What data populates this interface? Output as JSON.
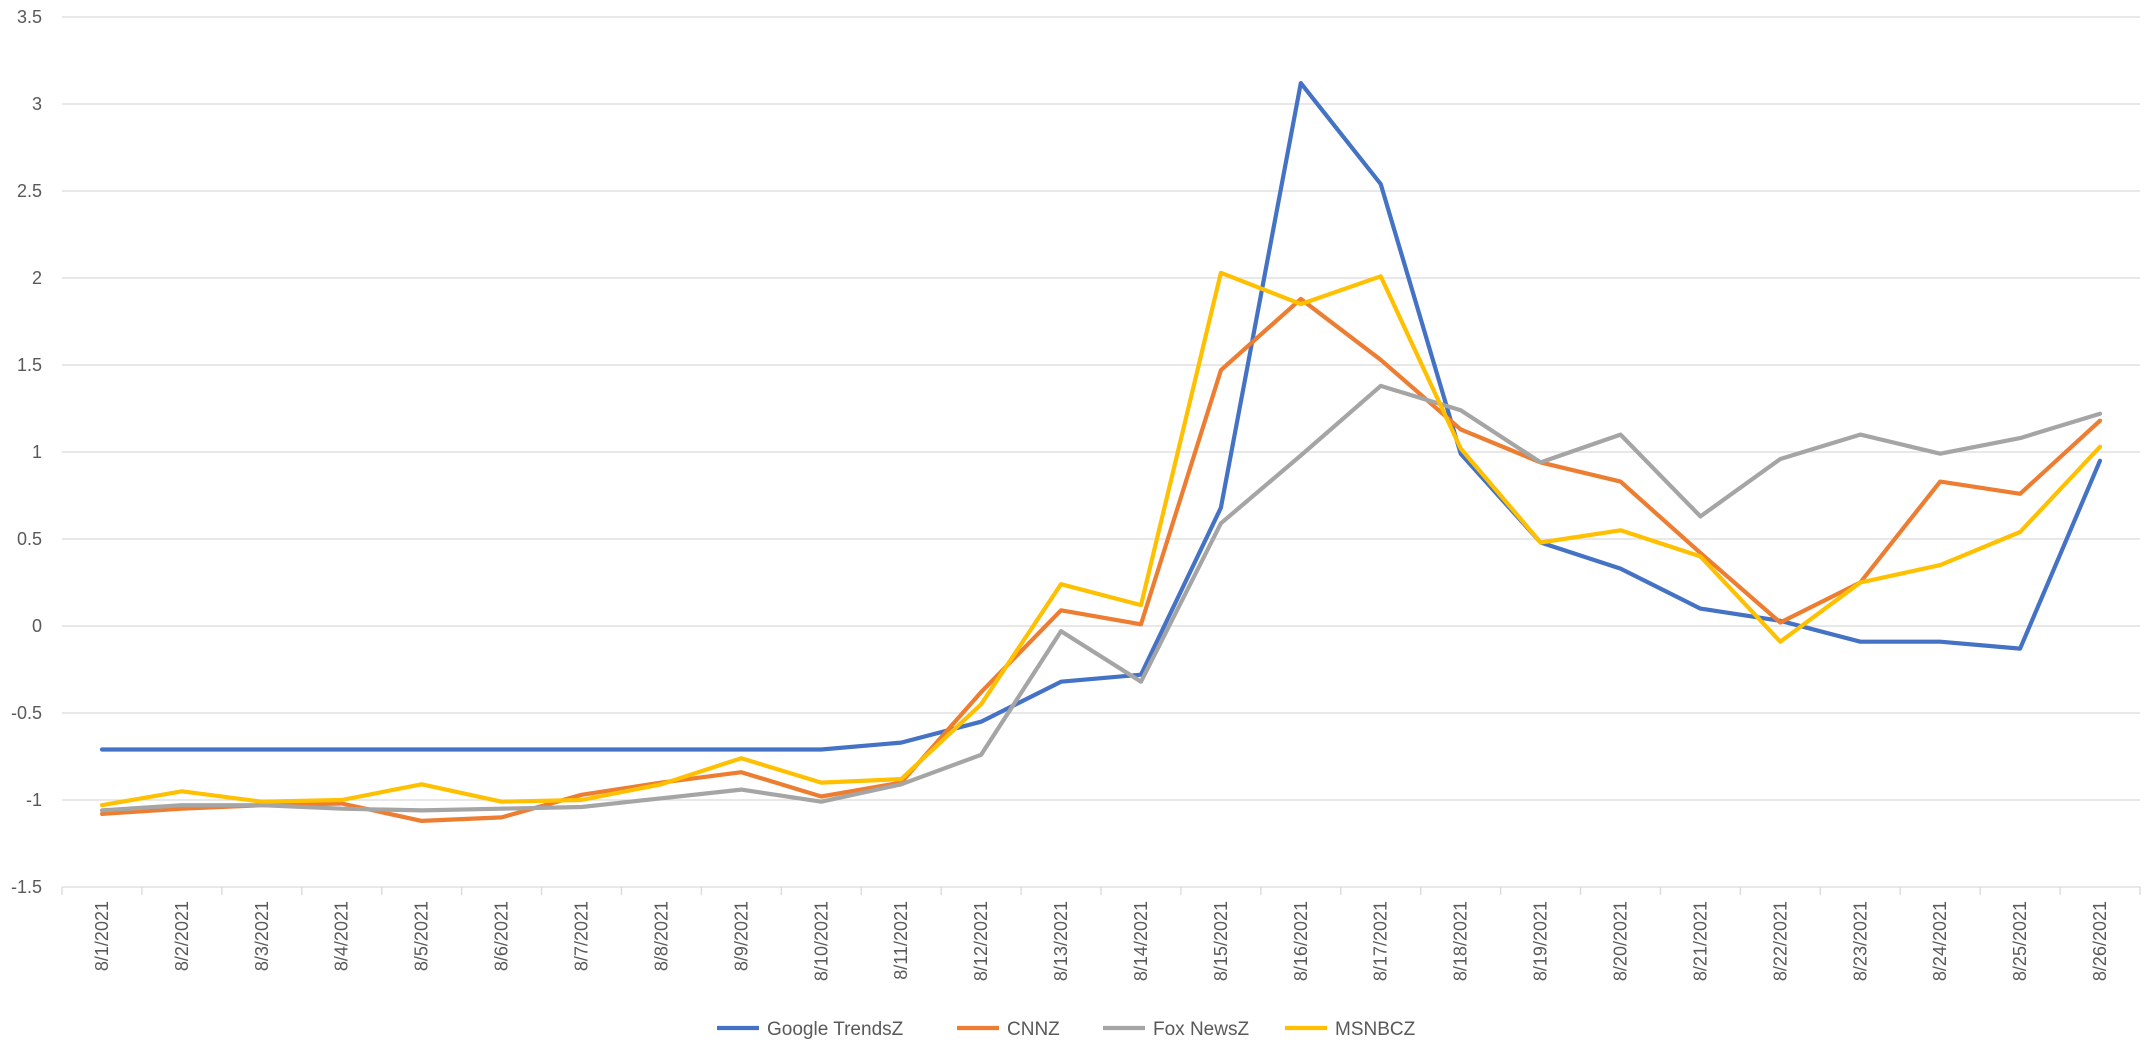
{
  "chart_data": {
    "type": "line",
    "title": "",
    "xlabel": "",
    "ylabel": "",
    "ylim": [
      -1.5,
      3.5
    ],
    "yticks": [
      -1.5,
      -1,
      -0.5,
      0,
      0.5,
      1,
      1.5,
      2,
      2.5,
      3,
      3.5
    ],
    "ytick_labels": [
      "-1.5",
      "-1",
      "-0.5",
      "0",
      "0.5",
      "1",
      "1.5",
      "2",
      "2.5",
      "3",
      "3.5"
    ],
    "grid": true,
    "legend_position": "bottom",
    "categories": [
      "8/1/2021",
      "8/2/2021",
      "8/3/2021",
      "8/4/2021",
      "8/5/2021",
      "8/6/2021",
      "8/7/2021",
      "8/8/2021",
      "8/9/2021",
      "8/10/2021",
      "8/11/2021",
      "8/12/2021",
      "8/13/2021",
      "8/14/2021",
      "8/15/2021",
      "8/16/2021",
      "8/17/2021",
      "8/18/2021",
      "8/19/2021",
      "8/20/2021",
      "8/21/2021",
      "8/22/2021",
      "8/23/2021",
      "8/24/2021",
      "8/25/2021",
      "8/26/2021"
    ],
    "series": [
      {
        "name": "Google TrendsZ",
        "color": "#4472C4",
        "values": [
          -0.71,
          -0.71,
          -0.71,
          -0.71,
          -0.71,
          -0.71,
          -0.71,
          -0.71,
          -0.71,
          -0.71,
          -0.67,
          -0.55,
          -0.32,
          -0.28,
          0.68,
          3.12,
          2.54,
          0.99,
          0.48,
          0.33,
          0.1,
          0.03,
          -0.09,
          -0.09,
          -0.13,
          0.95
        ]
      },
      {
        "name": "CNNZ",
        "color": "#ED7D31",
        "values": [
          -1.08,
          -1.05,
          -1.03,
          -1.02,
          -1.12,
          -1.1,
          -0.97,
          -0.9,
          -0.84,
          -0.98,
          -0.9,
          -0.38,
          0.09,
          0.01,
          1.47,
          1.88,
          1.53,
          1.13,
          0.94,
          0.83,
          0.42,
          0.02,
          0.25,
          0.83,
          0.76,
          1.18
        ]
      },
      {
        "name": "Fox NewsZ",
        "color": "#A5A5A5",
        "values": [
          -1.06,
          -1.03,
          -1.03,
          -1.05,
          -1.06,
          -1.05,
          -1.04,
          -0.99,
          -0.94,
          -1.01,
          -0.91,
          -0.74,
          -0.03,
          -0.32,
          0.59,
          0.98,
          1.38,
          1.24,
          0.94,
          1.1,
          0.63,
          0.96,
          1.1,
          0.99,
          1.08,
          1.22
        ]
      },
      {
        "name": "MSNBCZ",
        "color": "#FFC000",
        "values": [
          -1.03,
          -0.95,
          -1.01,
          -1.0,
          -0.91,
          -1.01,
          -1.0,
          -0.91,
          -0.76,
          -0.9,
          -0.88,
          -0.45,
          0.24,
          0.12,
          2.03,
          1.85,
          2.01,
          1.02,
          0.48,
          0.55,
          0.4,
          -0.09,
          0.25,
          0.35,
          0.54,
          1.03
        ]
      }
    ]
  }
}
